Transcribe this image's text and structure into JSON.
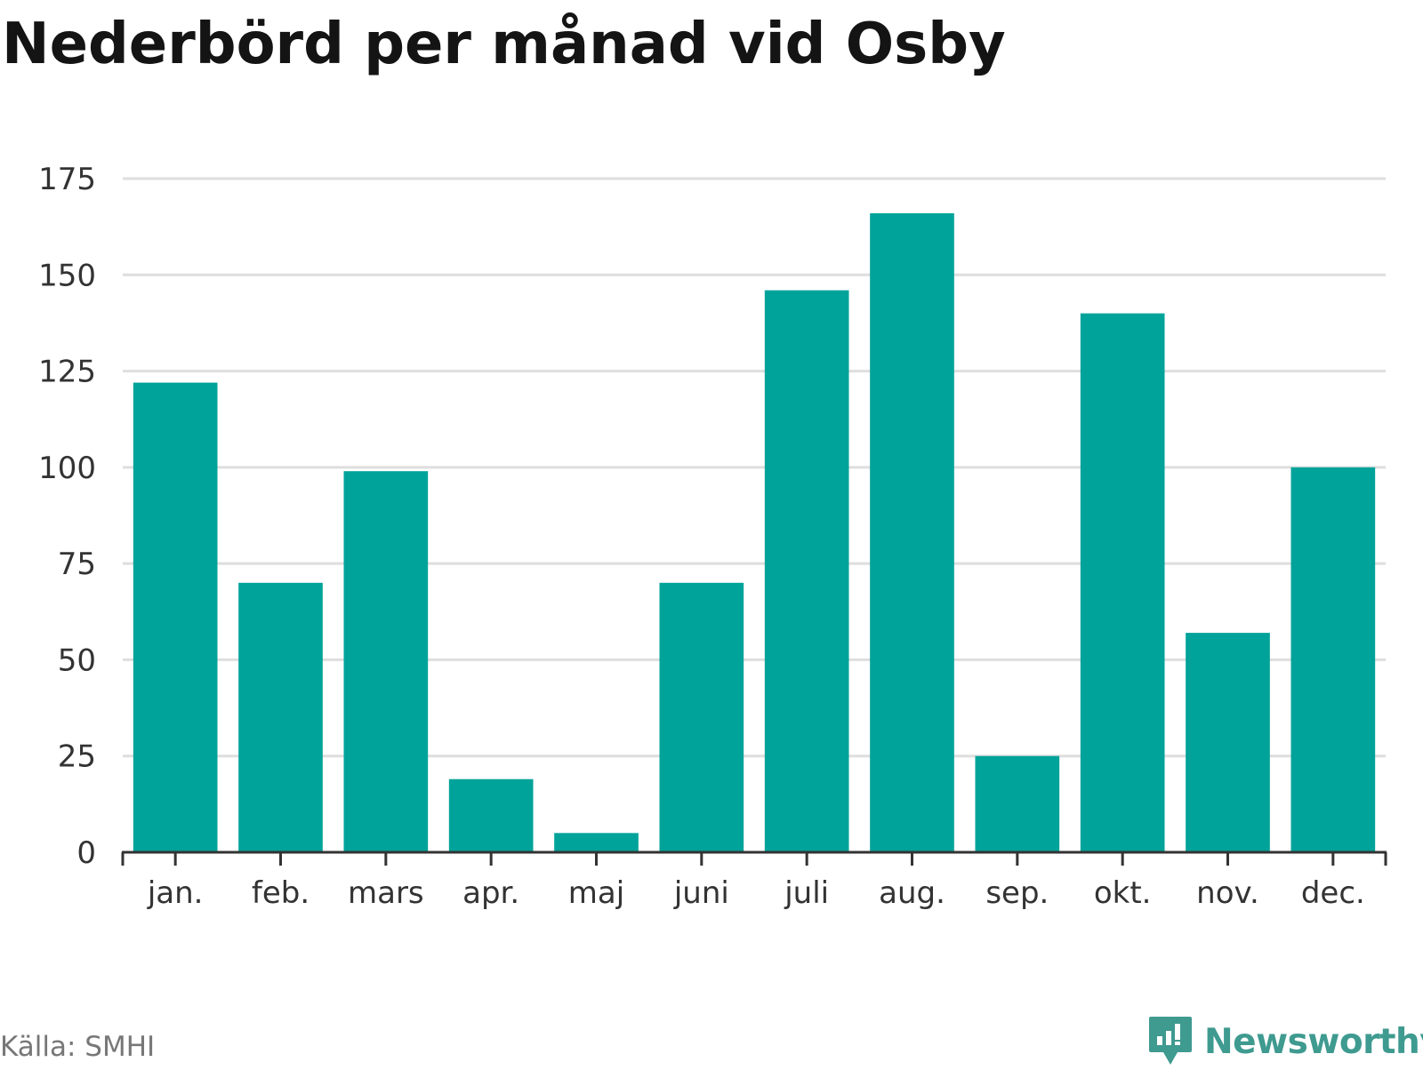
{
  "chart_data": {
    "type": "bar",
    "title": "Nederbörd per månad vid Osby",
    "categories": [
      "jan.",
      "feb.",
      "mars",
      "apr.",
      "maj",
      "juni",
      "juli",
      "aug.",
      "sep.",
      "okt.",
      "nov.",
      "dec."
    ],
    "values": [
      122,
      70,
      99,
      19,
      5,
      70,
      146,
      166,
      25,
      140,
      57,
      100
    ],
    "xlabel": "",
    "ylabel": "",
    "ylim": [
      0,
      175
    ],
    "yticks": [
      "0",
      "25",
      "50",
      "75",
      "100",
      "125",
      "150",
      "175"
    ],
    "grid": true,
    "bar_color": "#00a39a",
    "grid_color": "#dedede",
    "axis_color": "#333333"
  },
  "footer": {
    "source": "Källa: SMHI",
    "brand": "Newsworthy",
    "brand_color": "#3f9a90"
  }
}
